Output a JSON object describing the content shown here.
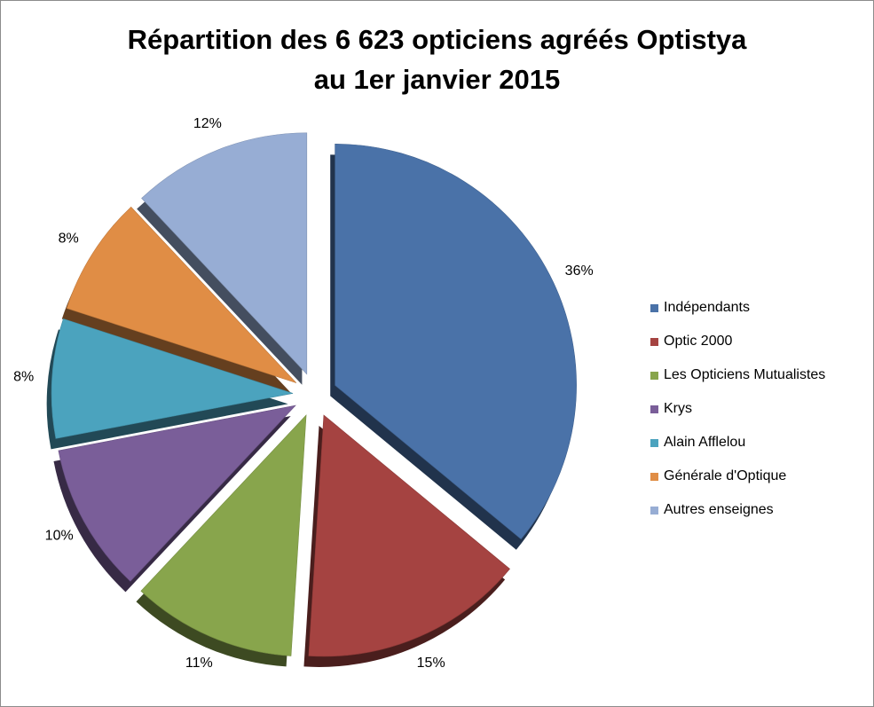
{
  "chart_data": {
    "type": "pie",
    "title_lines": [
      "Répartition des 6 623 opticiens agréés Optistya",
      "au 1er janvier 2015"
    ],
    "slices": [
      {
        "name": "Indépendants",
        "value": 36,
        "label": "36%",
        "color": "#4a72a8"
      },
      {
        "name": "Optic 2000",
        "value": 15,
        "label": "15%",
        "color": "#a54341"
      },
      {
        "name": "Les Opticiens Mutualistes",
        "value": 11,
        "label": "11%",
        "color": "#88a54c"
      },
      {
        "name": "Krys",
        "value": 10,
        "label": "10%",
        "color": "#7a5e99"
      },
      {
        "name": "Alain Afflelou",
        "value": 8,
        "label": "8%",
        "color": "#4ba3be"
      },
      {
        "name": "Générale d'Optique",
        "value": 8,
        "label": "8%",
        "color": "#e08d45"
      },
      {
        "name": "Autres enseignes",
        "value": 12,
        "label": "12%",
        "color": "#97add4"
      }
    ],
    "exploded": true,
    "legend_position": "right"
  }
}
